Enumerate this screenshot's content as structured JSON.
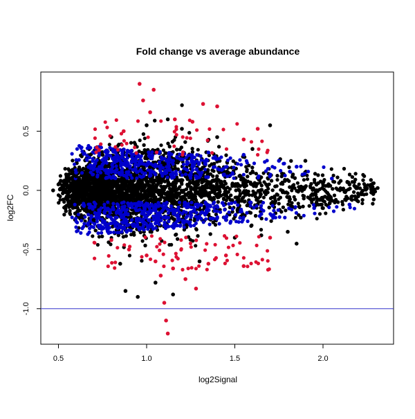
{
  "chart_data": {
    "type": "scatter",
    "title": "Fold change vs average abundance",
    "xlabel": "log2Signal",
    "ylabel": "log2FC",
    "xlim": [
      0.4,
      2.4
    ],
    "ylim": [
      -1.3,
      1.0
    ],
    "x_ticks": [
      "0.5",
      "1.0",
      "1.5",
      "2.0"
    ],
    "y_ticks": [
      "-1.0",
      "-0.5",
      "0.0",
      "0.5"
    ],
    "grid": false,
    "legend": "none",
    "reference_lines": [
      {
        "orientation": "horizontal",
        "y": -1.0,
        "color": "#3333cc"
      }
    ],
    "series": [
      {
        "color": "#000000",
        "distribution": "dense cloud centered at log2FC 0, spread widest near log2Signal 0.8-1.3, tapering toward 2.3",
        "values": [
          [
            0.47,
            0.0
          ],
          [
            0.5,
            0.05
          ],
          [
            0.55,
            -0.08
          ],
          [
            0.6,
            0.12
          ],
          [
            0.7,
            -0.25
          ],
          [
            0.75,
            0.3
          ],
          [
            0.8,
            0.45
          ],
          [
            0.85,
            -0.62
          ],
          [
            0.88,
            -0.85
          ],
          [
            0.95,
            -0.9
          ],
          [
            1.0,
            0.55
          ],
          [
            1.05,
            -0.78
          ],
          [
            1.12,
            0.6
          ],
          [
            1.15,
            -0.88
          ],
          [
            1.2,
            0.52
          ],
          [
            1.3,
            -0.6
          ],
          [
            1.4,
            0.45
          ],
          [
            1.5,
            -0.4
          ],
          [
            1.6,
            0.35
          ],
          [
            1.65,
            -0.38
          ],
          [
            1.7,
            0.55
          ],
          [
            1.8,
            -0.35
          ],
          [
            1.85,
            -0.45
          ],
          [
            1.9,
            0.25
          ],
          [
            2.0,
            -0.15
          ],
          [
            2.1,
            0.08
          ],
          [
            2.15,
            0.05
          ],
          [
            2.2,
            -0.05
          ],
          [
            2.27,
            0.03
          ],
          [
            2.31,
            0.02
          ]
        ]
      },
      {
        "color": "#0000cc",
        "distribution": "moderate fold change band roughly 0.1-0.35 above and below zero",
        "values": [
          [
            0.6,
            0.15
          ],
          [
            0.75,
            0.22
          ],
          [
            0.85,
            -0.2
          ],
          [
            0.95,
            0.3
          ],
          [
            1.05,
            -0.28
          ],
          [
            1.15,
            0.25
          ],
          [
            1.25,
            -0.3
          ],
          [
            1.35,
            0.32
          ],
          [
            1.45,
            -0.25
          ],
          [
            1.55,
            0.3
          ],
          [
            1.65,
            -0.2
          ],
          [
            1.75,
            0.25
          ],
          [
            1.85,
            0.2
          ],
          [
            1.95,
            -0.15
          ],
          [
            2.05,
            0.1
          ],
          [
            2.15,
            -0.12
          ]
        ]
      },
      {
        "color": "#dd1133",
        "distribution": "large fold changes, mostly beyond +/-0.3",
        "values": [
          [
            0.96,
            0.9
          ],
          [
            1.04,
            0.85
          ],
          [
            0.98,
            0.76
          ],
          [
            1.02,
            0.66
          ],
          [
            1.32,
            0.73
          ],
          [
            1.4,
            0.71
          ],
          [
            1.16,
            0.6
          ],
          [
            1.26,
            0.58
          ],
          [
            1.63,
            0.52
          ],
          [
            0.87,
            0.5
          ],
          [
            0.73,
            0.34
          ],
          [
            1.55,
            0.43
          ],
          [
            0.8,
            -0.42
          ],
          [
            0.9,
            -0.5
          ],
          [
            1.0,
            -0.55
          ],
          [
            1.05,
            -0.6
          ],
          [
            1.08,
            -0.72
          ],
          [
            1.15,
            -0.66
          ],
          [
            1.22,
            -0.75
          ],
          [
            1.28,
            -0.83
          ],
          [
            1.35,
            -0.62
          ],
          [
            1.45,
            -0.55
          ],
          [
            1.55,
            -0.64
          ],
          [
            1.7,
            -0.4
          ],
          [
            1.1,
            -0.95
          ],
          [
            1.11,
            -1.1
          ],
          [
            1.12,
            -1.21
          ]
        ]
      }
    ]
  }
}
